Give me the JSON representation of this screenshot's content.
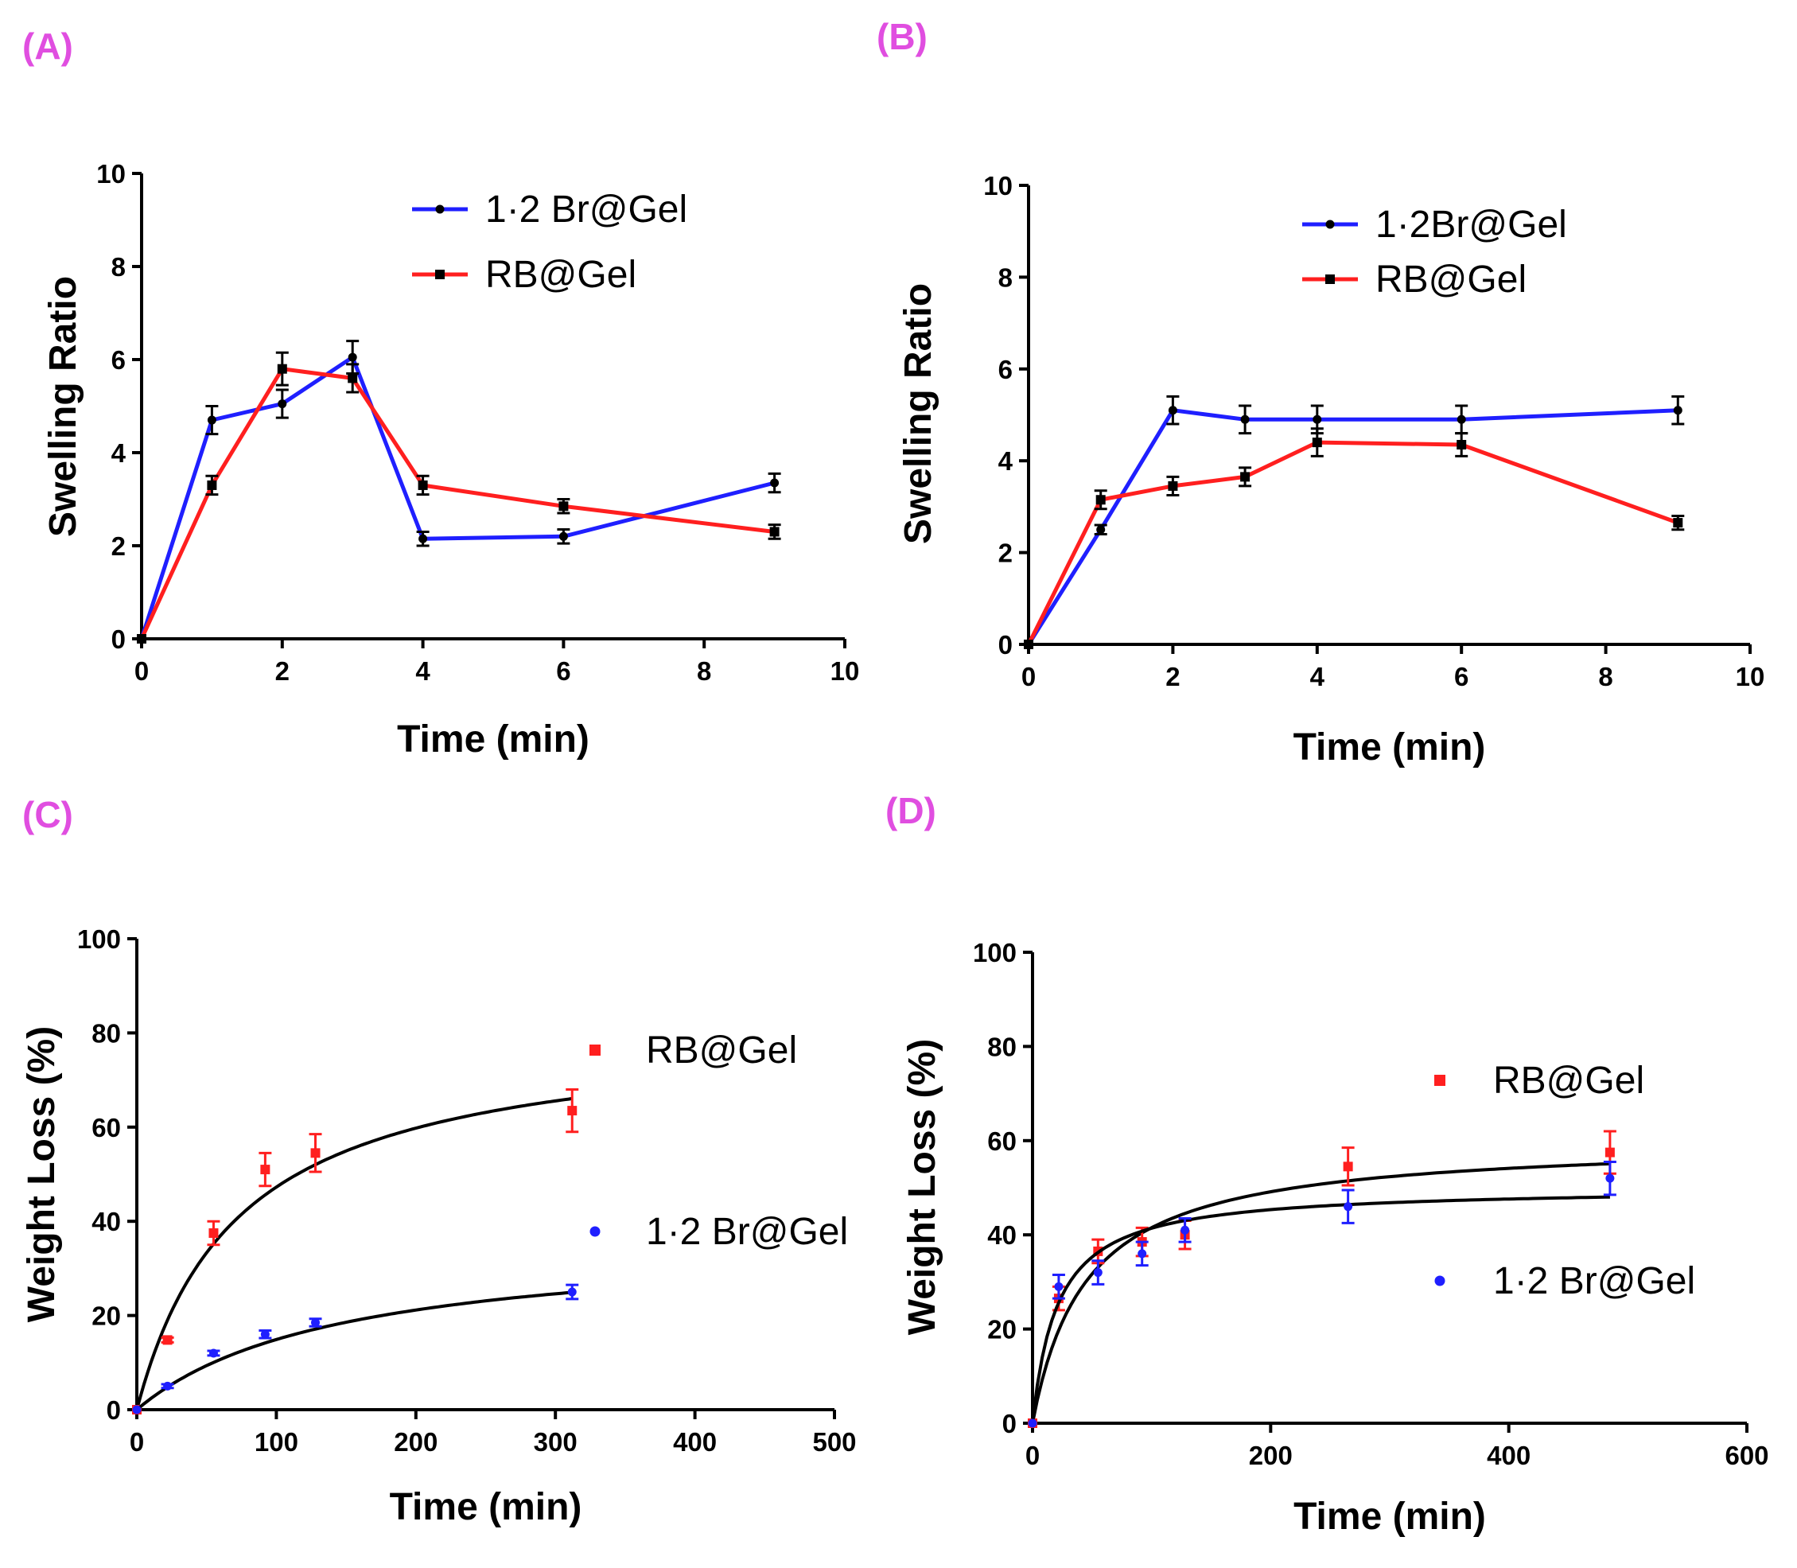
{
  "figure": {
    "panels": [
      {
        "label": "(A)",
        "chart_data": {
          "type": "line",
          "xlabel": "Time (min)",
          "ylabel": "Swelling Ratio",
          "xlim": [
            0,
            10
          ],
          "ylim": [
            0,
            10
          ],
          "xticks": [
            0,
            2,
            4,
            6,
            8,
            10
          ],
          "yticks": [
            0,
            2,
            4,
            6,
            8,
            10
          ],
          "legend_position": "top-right",
          "series": [
            {
              "name": "1·2 Br@Gel",
              "color": "#1f1fff",
              "marker": "circle",
              "x": [
                0,
                1,
                2,
                3,
                4,
                6,
                9
              ],
              "y": [
                0,
                4.7,
                5.05,
                6.05,
                2.15,
                2.2,
                3.35
              ],
              "error": [
                0,
                0.3,
                0.3,
                0.35,
                0.15,
                0.15,
                0.2
              ]
            },
            {
              "name": "RB@Gel",
              "color": "#ff1f1f",
              "marker": "square",
              "x": [
                0,
                1,
                2,
                3,
                4,
                6,
                9
              ],
              "y": [
                0,
                3.3,
                5.8,
                5.6,
                3.3,
                2.85,
                2.3
              ],
              "error": [
                0,
                0.2,
                0.35,
                0.3,
                0.2,
                0.15,
                0.15
              ]
            }
          ]
        }
      },
      {
        "label": "(B)",
        "chart_data": {
          "type": "line",
          "xlabel": "Time (min)",
          "ylabel": "Swelling Ratio",
          "xlim": [
            0,
            10
          ],
          "ylim": [
            0,
            10
          ],
          "xticks": [
            0,
            2,
            4,
            6,
            8,
            10
          ],
          "yticks": [
            0,
            2,
            4,
            6,
            8,
            10
          ],
          "legend_position": "top-right",
          "series": [
            {
              "name": "1·2Br@Gel",
              "color": "#1f1fff",
              "marker": "circle",
              "x": [
                0,
                1,
                2,
                3,
                4,
                6,
                9
              ],
              "y": [
                0,
                2.5,
                5.1,
                4.9,
                4.9,
                4.9,
                5.1
              ],
              "error": [
                0,
                0.1,
                0.3,
                0.3,
                0.3,
                0.3,
                0.3
              ]
            },
            {
              "name": "RB@Gel",
              "color": "#ff1f1f",
              "marker": "square",
              "x": [
                0,
                1,
                2,
                3,
                4,
                6,
                9
              ],
              "y": [
                0,
                3.15,
                3.45,
                3.65,
                4.4,
                4.35,
                2.65
              ],
              "error": [
                0,
                0.2,
                0.2,
                0.2,
                0.3,
                0.25,
                0.15
              ]
            }
          ]
        }
      },
      {
        "label": "(C)",
        "chart_data": {
          "type": "scatter",
          "xlabel": "Time (min)",
          "ylabel": "Weight Loss (%)",
          "xlim": [
            0,
            500
          ],
          "ylim": [
            0,
            100
          ],
          "xticks": [
            0,
            100,
            200,
            300,
            400,
            500
          ],
          "yticks": [
            0,
            20,
            40,
            60,
            80,
            100
          ],
          "legend_position": "right",
          "series": [
            {
              "name": "RB@Gel",
              "color": "#ff1f1f",
              "marker": "square",
              "x": [
                0,
                22,
                55,
                92,
                128,
                312
              ],
              "y": [
                0,
                14.8,
                37.5,
                51,
                54.5,
                63.5
              ],
              "error": [
                0,
                0.5,
                2.5,
                3.5,
                4,
                4.5
              ],
              "fit": {
                "ymax": 81.3,
                "k": 72
              }
            },
            {
              "name": "1·2 Br@Gel",
              "color": "#1f1fff",
              "marker": "circle",
              "x": [
                0,
                22,
                55,
                92,
                128,
                312
              ],
              "y": [
                0,
                5,
                12,
                16,
                18.5,
                25
              ],
              "error": [
                0,
                0.4,
                0.5,
                0.8,
                0.8,
                1.5
              ],
              "fit": {
                "ymax": 36.5,
                "k": 145
              }
            }
          ]
        }
      },
      {
        "label": "(D)",
        "chart_data": {
          "type": "scatter",
          "xlabel": "Time (min)",
          "ylabel": "Weight Loss (%)",
          "xlim": [
            0,
            600
          ],
          "ylim": [
            0,
            100
          ],
          "xticks": [
            0,
            200,
            400,
            600
          ],
          "yticks": [
            0,
            20,
            40,
            60,
            80,
            100
          ],
          "legend_position": "right",
          "series": [
            {
              "name": "RB@Gel",
              "color": "#ff1f1f",
              "marker": "square",
              "x": [
                0,
                22,
                55,
                92,
                128,
                265,
                485
              ],
              "y": [
                0,
                26.5,
                36.5,
                38.5,
                40,
                54.5,
                57.5
              ],
              "error": [
                0,
                2.5,
                2.5,
                3,
                3,
                4,
                4.5
              ],
              "fit": {
                "ymax": 60.2,
                "k": 45
              }
            },
            {
              "name": "1·2 Br@Gel",
              "color": "#1f1fff",
              "marker": "circle",
              "x": [
                0,
                22,
                55,
                92,
                128,
                265,
                485
              ],
              "y": [
                0,
                29,
                32,
                36,
                41,
                46,
                52
              ],
              "error": [
                0,
                2.5,
                2.5,
                2.5,
                2.5,
                3.5,
                3.5
              ],
              "fit": {
                "ymax": 50.1,
                "k": 21
              }
            }
          ]
        }
      }
    ]
  }
}
